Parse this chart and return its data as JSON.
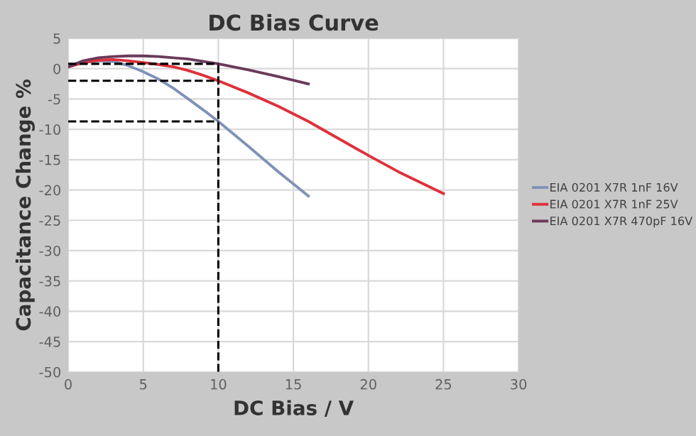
{
  "chart_data": {
    "type": "line",
    "title": "DC Bias Curve",
    "xlabel": "DC Bias / V",
    "ylabel": "Capacitance Change %",
    "xlim": [
      0,
      30
    ],
    "xticks": [
      0,
      5,
      10,
      15,
      20,
      25,
      30
    ],
    "ylim": [
      -50,
      5
    ],
    "yticks": [
      -50,
      -45,
      -40,
      -35,
      -30,
      -25,
      -20,
      -15,
      -10,
      -5,
      0,
      5
    ],
    "grid": true,
    "legend": "right",
    "marker": "none",
    "line_style": "solid",
    "series": [
      {
        "name": "EIA 0201 X7R 1nF 16V",
        "color": "#7f93b8",
        "x": [
          0,
          1,
          2,
          3,
          4,
          5,
          6,
          7,
          8,
          9,
          10,
          12,
          14,
          16
        ],
        "values": [
          0.3,
          1.0,
          1.3,
          1.2,
          0.5,
          -0.5,
          -1.7,
          -3.2,
          -5,
          -6.8,
          -8.7,
          -12.8,
          -17,
          -21
        ]
      },
      {
        "name": "EIA 0201 X7R 1nF 25V",
        "color": "#e0303a",
        "x": [
          0,
          1,
          2,
          3,
          4,
          5,
          6,
          7,
          8,
          9,
          10,
          12,
          14,
          16,
          18,
          20,
          22,
          25
        ],
        "values": [
          0.3,
          1.0,
          1.4,
          1.5,
          1.3,
          1.0,
          0.7,
          0.3,
          -0.3,
          -1.1,
          -2,
          -4,
          -6.2,
          -8.7,
          -11.5,
          -14.3,
          -17,
          -20.6
        ]
      },
      {
        "name": "EIA 0201 X7R 470pF 16V",
        "color": "#6b3a5a",
        "x": [
          0,
          1,
          2,
          3,
          4,
          5,
          6,
          8,
          10,
          12,
          14,
          16
        ],
        "values": [
          0.3,
          1.3,
          1.8,
          2.0,
          2.1,
          2.1,
          2.0,
          1.6,
          0.8,
          -0.2,
          -1.3,
          -2.5
        ]
      }
    ],
    "ref_lines": [
      {
        "axis": "x",
        "value": 10,
        "color": "#000000",
        "line_style": "dashed"
      },
      {
        "axis": "y",
        "value": 0.8,
        "color": "#000000",
        "line_style": "dashed"
      },
      {
        "axis": "y",
        "value": -2,
        "color": "#000000",
        "line_style": "dashed"
      },
      {
        "axis": "y",
        "value": -8.7,
        "color": "#000000",
        "line_style": "dashed"
      }
    ]
  }
}
